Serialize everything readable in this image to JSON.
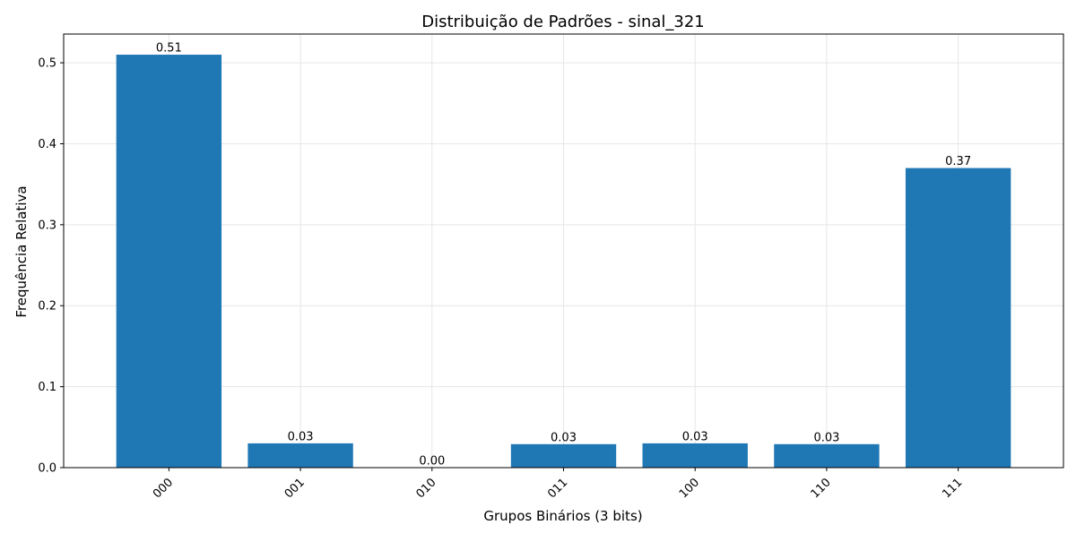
{
  "chart_data": {
    "type": "bar",
    "title": "Distribuição de Padrões - sinal_321",
    "xlabel": "Grupos Binários (3 bits)",
    "ylabel": "Frequência Relativa",
    "categories": [
      "000",
      "001",
      "010",
      "011",
      "100",
      "110",
      "111"
    ],
    "values": [
      0.51,
      0.03,
      0.0,
      0.029,
      0.03,
      0.029,
      0.37
    ],
    "value_labels": [
      "0.51",
      "0.03",
      "0.00",
      "0.03",
      "0.03",
      "0.03",
      "0.37"
    ],
    "yticks": [
      0.0,
      0.1,
      0.2,
      0.3,
      0.4,
      0.5
    ],
    "ytick_labels": [
      "0.0",
      "0.1",
      "0.2",
      "0.3",
      "0.4",
      "0.5"
    ],
    "ylim": [
      0,
      0.5355
    ],
    "grid": true,
    "xtick_rotation_deg": 45,
    "colors": {
      "bar": "#1f77b4",
      "grid": "#e6e6e6",
      "axis": "#000000"
    }
  }
}
